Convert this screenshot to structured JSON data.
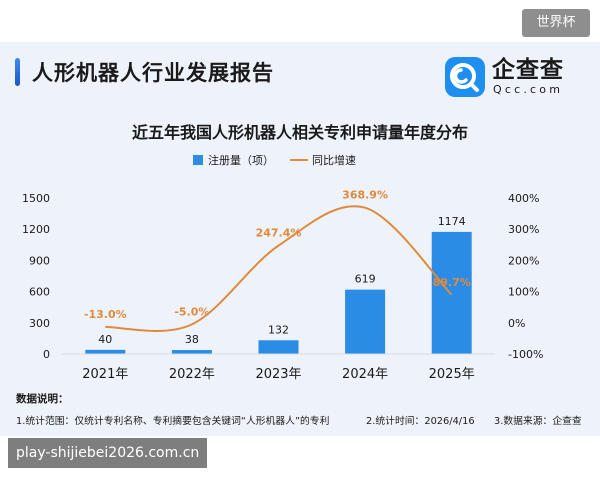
{
  "watermark_top": "世界杯",
  "header": {
    "title": "人形机器人行业发展报告"
  },
  "logo": {
    "name": "企查查",
    "sub": "Qcc.com"
  },
  "chart_data": {
    "type": "bar",
    "title": "近五年我国人形机器人相关专利申请量年度分布",
    "categories": [
      "2021年",
      "2022年",
      "2023年",
      "2024年",
      "2025年"
    ],
    "series": [
      {
        "name": "注册量（项）",
        "type": "bar",
        "axis": "left",
        "values": [
          40,
          38,
          132,
          619,
          1174
        ],
        "labels": [
          "40",
          "38",
          "132",
          "619",
          "1174"
        ],
        "color": "#2b8ce6"
      },
      {
        "name": "同比增速",
        "type": "line",
        "axis": "right",
        "values": [
          -13.0,
          -5.0,
          247.4,
          368.9,
          89.7
        ],
        "labels": [
          "-13.0%",
          "-5.0%",
          "247.4%",
          "368.9%",
          "89.7%"
        ],
        "color": "#e08a3c"
      }
    ],
    "y_left": {
      "min": 0,
      "max": 1500,
      "ticks": [
        "0",
        "300",
        "600",
        "900",
        "1200",
        "1500"
      ]
    },
    "y_right": {
      "min": -100,
      "max": 400,
      "ticks": [
        "-100%",
        "0%",
        "100%",
        "200%",
        "300%",
        "400%"
      ]
    },
    "legend_position": "top-center",
    "grid": false
  },
  "notes": {
    "title": "数据说明：",
    "items": [
      "1.统计范围：仅统计专利名称、专利摘要包含关键词“人形机器人”的专利",
      "2.统计时间：2026/4/16",
      "3.数据来源：企查查"
    ]
  },
  "site_watermark": "play-shijiebei2026.com.cn"
}
